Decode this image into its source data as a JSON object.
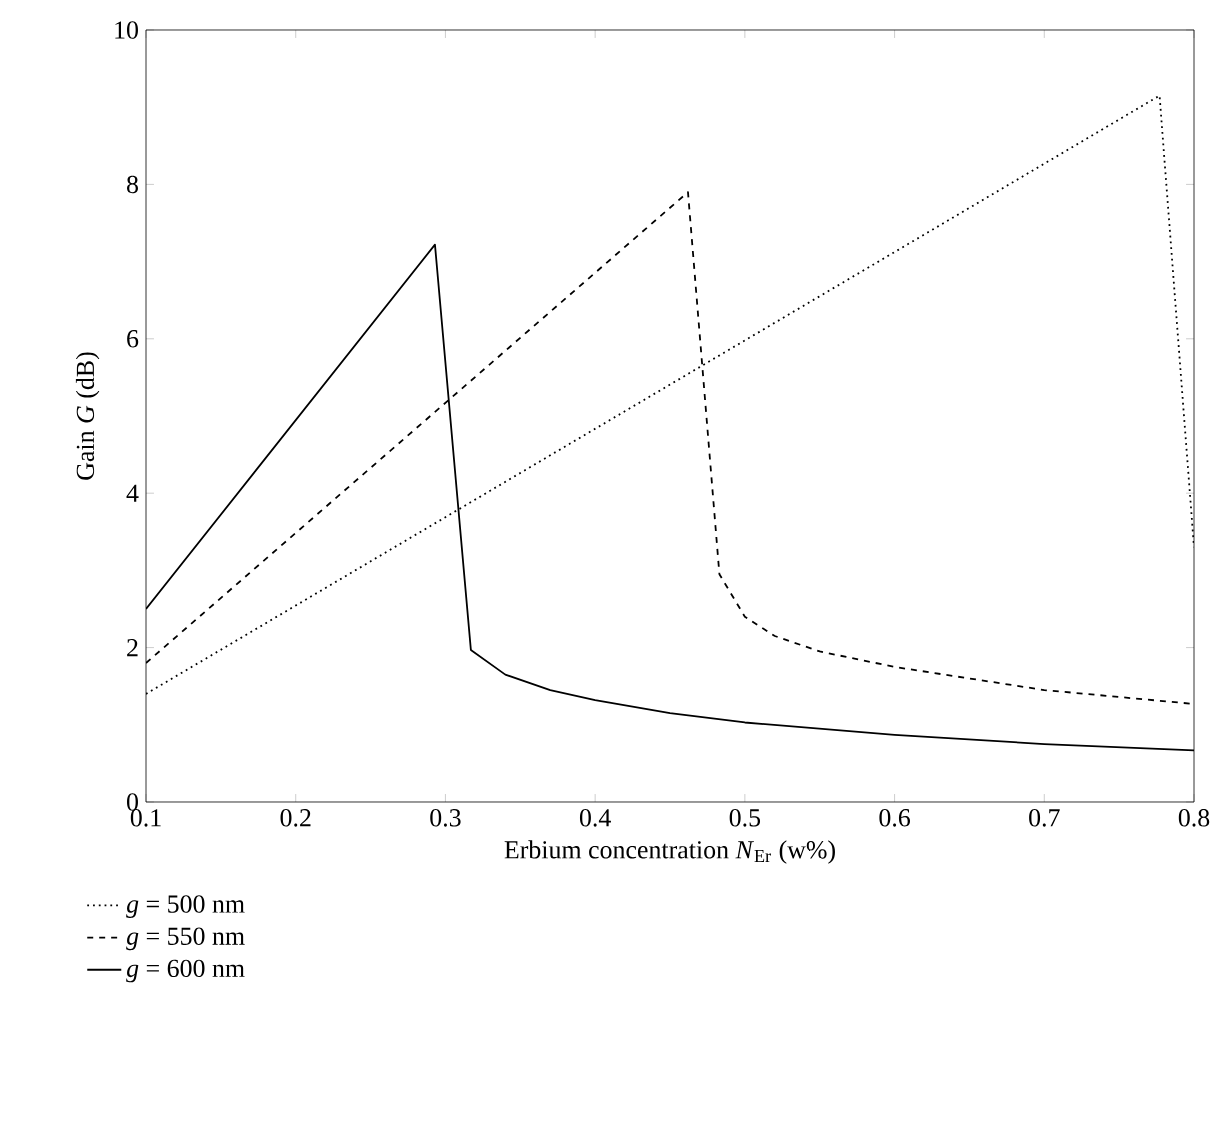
{
  "chart_data": {
    "type": "line",
    "xlabel": "Erbium concentration *N*$_{Er}$ (w%)",
    "ylabel": "Gain *G* (dB)",
    "xlim": [
      0.1,
      0.8
    ],
    "ylim": [
      0,
      10
    ],
    "xticks": [
      0.1,
      0.2,
      0.3,
      0.4,
      0.5,
      0.6,
      0.7,
      0.8
    ],
    "yticks": [
      0,
      2,
      4,
      6,
      8,
      10
    ],
    "grid": false,
    "legend": "bottom",
    "marker": "none",
    "series": [
      {
        "name": "*g* = 500 nm",
        "color": "#000000",
        "line_style": "dotted",
        "x": [
          0.1,
          0.777,
          0.8
        ],
        "values": [
          1.4,
          9.15,
          3.3
        ]
      },
      {
        "name": "*g* = 550 nm",
        "color": "#000000",
        "line_style": "dashed",
        "x": [
          0.1,
          0.462,
          0.483,
          0.5,
          0.52,
          0.55,
          0.6,
          0.7,
          0.8
        ],
        "values": [
          1.8,
          7.9,
          2.95,
          2.4,
          2.15,
          1.95,
          1.75,
          1.45,
          1.27
        ]
      },
      {
        "name": "*g* = 600 nm",
        "color": "#000000",
        "line_style": "solid",
        "x": [
          0.1,
          0.293,
          0.317,
          0.34,
          0.37,
          0.4,
          0.45,
          0.5,
          0.6,
          0.7,
          0.8
        ],
        "values": [
          2.5,
          7.22,
          1.97,
          1.65,
          1.45,
          1.32,
          1.15,
          1.03,
          0.87,
          0.75,
          0.67
        ]
      }
    ]
  }
}
